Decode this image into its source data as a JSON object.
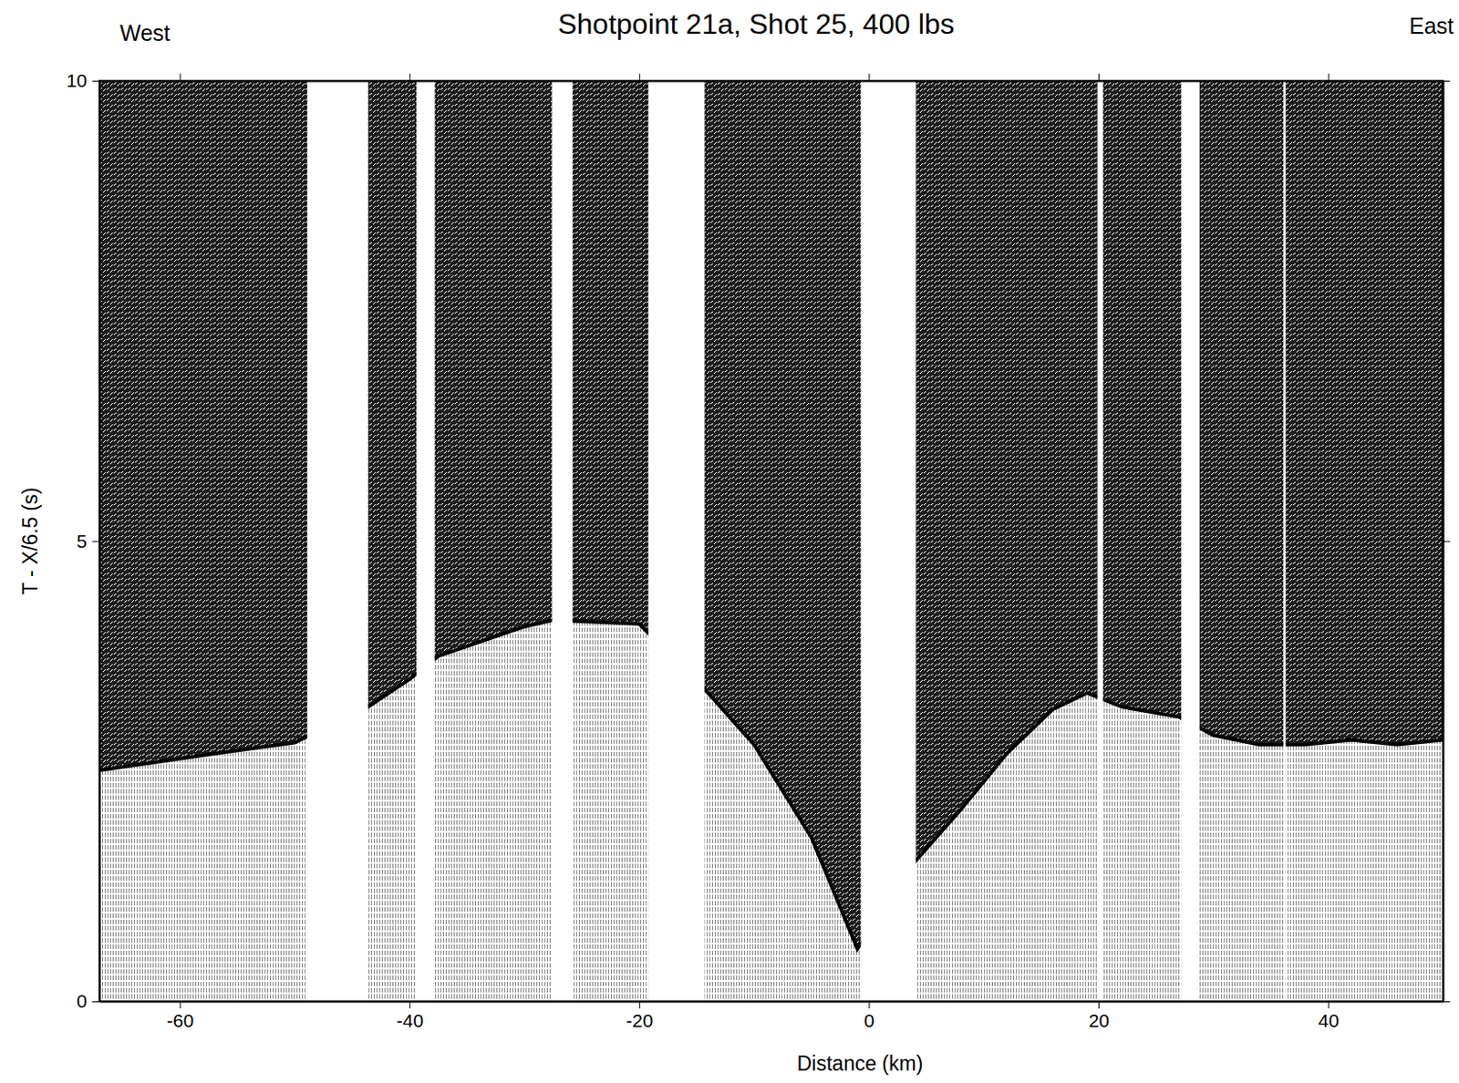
{
  "chart_data": {
    "type": "seismic_section",
    "title": "Shotpoint 21a, Shot 25, 400 lbs",
    "left_label": "West",
    "right_label": "East",
    "x_label": "Distance (km)",
    "y_label": "T - X/6.5 (s)",
    "xlim": [
      -67,
      50
    ],
    "xticks": [
      -60,
      -40,
      -20,
      0,
      20,
      40
    ],
    "ylim": [
      0,
      10
    ],
    "yticks": [
      0,
      5,
      10
    ],
    "segments": [
      [
        -67,
        -48.9
      ],
      [
        -43.6,
        -39.4
      ],
      [
        -37.8,
        -27.6
      ],
      [
        -25.8,
        -19.2
      ],
      [
        -14.3,
        -0.7
      ],
      [
        4.1,
        19.9
      ],
      [
        20.4,
        27.2
      ],
      [
        28.8,
        36.1
      ],
      [
        36.3,
        50
      ]
    ],
    "first_arrival": {
      "x": [
        -67,
        -57,
        -50,
        -43.6,
        -40,
        -37.5,
        -30,
        -27.6,
        -25.5,
        -20,
        -14,
        -10,
        -5,
        -1,
        4.1,
        8,
        12,
        16,
        19,
        22,
        27,
        30,
        34,
        38,
        42,
        46,
        50
      ],
      "values": [
        2.51,
        2.69,
        2.81,
        3.2,
        3.5,
        3.75,
        4.07,
        4.14,
        4.13,
        4.1,
        3.35,
        2.79,
        1.78,
        0.57,
        1.53,
        2.08,
        2.69,
        3.17,
        3.35,
        3.2,
        3.09,
        2.89,
        2.79,
        2.79,
        2.84,
        2.79,
        2.84
      ]
    }
  }
}
